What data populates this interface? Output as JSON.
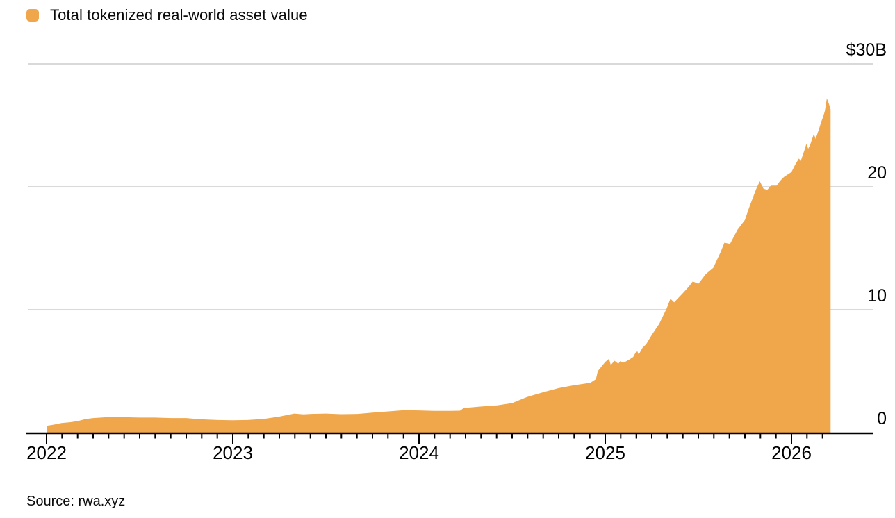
{
  "legend": {
    "label": "Total tokenized real-world asset value",
    "swatch_color": "#f0a64b"
  },
  "source": {
    "label": "Source: rwa.xyz"
  },
  "chart_data": {
    "type": "area",
    "title": "Total tokenized real-world asset value",
    "unit": "USD billions",
    "legend_position": "top-left",
    "grid": "horizontal",
    "area_color": "#f0a64b",
    "gridline_color": "#d9d9d9",
    "axis_color": "#000000",
    "x_domain": [
      2022.0,
      2026.21
    ],
    "y_domain": [
      0,
      30
    ],
    "y_ticks": [
      {
        "value": 30,
        "label": "$30B"
      },
      {
        "value": 20,
        "label": "20"
      },
      {
        "value": 10,
        "label": "10"
      },
      {
        "value": 0,
        "label": "0"
      }
    ],
    "x_ticks_years": [
      {
        "value": 2022,
        "label": "2022"
      },
      {
        "value": 2023,
        "label": "2023"
      },
      {
        "value": 2024,
        "label": "2024"
      },
      {
        "value": 2025,
        "label": "2025"
      },
      {
        "value": 2026,
        "label": "2026"
      }
    ],
    "x_minor_tick_step_months": 1,
    "series": [
      {
        "name": "Total tokenized real-world asset value",
        "points": [
          [
            2022.0,
            0.55
          ],
          [
            2022.04,
            0.65
          ],
          [
            2022.08,
            0.78
          ],
          [
            2022.13,
            0.85
          ],
          [
            2022.17,
            0.95
          ],
          [
            2022.21,
            1.1
          ],
          [
            2022.25,
            1.18
          ],
          [
            2022.33,
            1.26
          ],
          [
            2022.42,
            1.25
          ],
          [
            2022.5,
            1.22
          ],
          [
            2022.58,
            1.22
          ],
          [
            2022.67,
            1.18
          ],
          [
            2022.75,
            1.18
          ],
          [
            2022.83,
            1.08
          ],
          [
            2022.92,
            1.02
          ],
          [
            2023.0,
            1.0
          ],
          [
            2023.08,
            1.02
          ],
          [
            2023.17,
            1.12
          ],
          [
            2023.25,
            1.3
          ],
          [
            2023.33,
            1.55
          ],
          [
            2023.38,
            1.48
          ],
          [
            2023.42,
            1.52
          ],
          [
            2023.5,
            1.55
          ],
          [
            2023.58,
            1.5
          ],
          [
            2023.67,
            1.52
          ],
          [
            2023.75,
            1.62
          ],
          [
            2023.83,
            1.72
          ],
          [
            2023.92,
            1.82
          ],
          [
            2024.0,
            1.8
          ],
          [
            2024.08,
            1.76
          ],
          [
            2024.17,
            1.76
          ],
          [
            2024.22,
            1.78
          ],
          [
            2024.24,
            2.0
          ],
          [
            2024.33,
            2.12
          ],
          [
            2024.42,
            2.22
          ],
          [
            2024.5,
            2.4
          ],
          [
            2024.58,
            2.9
          ],
          [
            2024.67,
            3.3
          ],
          [
            2024.75,
            3.62
          ],
          [
            2024.83,
            3.85
          ],
          [
            2024.92,
            4.05
          ],
          [
            2024.95,
            4.35
          ],
          [
            2024.96,
            5.0
          ],
          [
            2025.0,
            5.75
          ],
          [
            2025.02,
            6.0
          ],
          [
            2025.03,
            5.5
          ],
          [
            2025.05,
            5.85
          ],
          [
            2025.07,
            5.6
          ],
          [
            2025.08,
            5.8
          ],
          [
            2025.1,
            5.7
          ],
          [
            2025.13,
            5.95
          ],
          [
            2025.15,
            6.15
          ],
          [
            2025.17,
            6.7
          ],
          [
            2025.18,
            6.35
          ],
          [
            2025.2,
            6.9
          ],
          [
            2025.22,
            7.2
          ],
          [
            2025.25,
            7.95
          ],
          [
            2025.29,
            8.85
          ],
          [
            2025.33,
            10.1
          ],
          [
            2025.35,
            10.9
          ],
          [
            2025.37,
            10.6
          ],
          [
            2025.42,
            11.4
          ],
          [
            2025.45,
            11.9
          ],
          [
            2025.47,
            12.3
          ],
          [
            2025.5,
            12.1
          ],
          [
            2025.54,
            12.9
          ],
          [
            2025.58,
            13.4
          ],
          [
            2025.62,
            14.7
          ],
          [
            2025.64,
            15.45
          ],
          [
            2025.67,
            15.35
          ],
          [
            2025.71,
            16.5
          ],
          [
            2025.75,
            17.3
          ],
          [
            2025.77,
            18.2
          ],
          [
            2025.79,
            19.0
          ],
          [
            2025.81,
            19.8
          ],
          [
            2025.83,
            20.45
          ],
          [
            2025.85,
            19.85
          ],
          [
            2025.87,
            19.75
          ],
          [
            2025.89,
            20.1
          ],
          [
            2025.92,
            20.1
          ],
          [
            2025.94,
            20.5
          ],
          [
            2025.96,
            20.8
          ],
          [
            2025.98,
            21.0
          ],
          [
            2026.0,
            21.2
          ],
          [
            2026.02,
            21.8
          ],
          [
            2026.04,
            22.3
          ],
          [
            2026.05,
            22.1
          ],
          [
            2026.07,
            23.0
          ],
          [
            2026.08,
            23.5
          ],
          [
            2026.09,
            23.1
          ],
          [
            2026.1,
            23.4
          ],
          [
            2026.12,
            24.3
          ],
          [
            2026.13,
            23.9
          ],
          [
            2026.15,
            24.8
          ],
          [
            2026.16,
            25.3
          ],
          [
            2026.17,
            25.7
          ],
          [
            2026.18,
            26.2
          ],
          [
            2026.19,
            27.2
          ],
          [
            2026.2,
            26.8
          ],
          [
            2026.21,
            26.3
          ]
        ]
      }
    ]
  }
}
